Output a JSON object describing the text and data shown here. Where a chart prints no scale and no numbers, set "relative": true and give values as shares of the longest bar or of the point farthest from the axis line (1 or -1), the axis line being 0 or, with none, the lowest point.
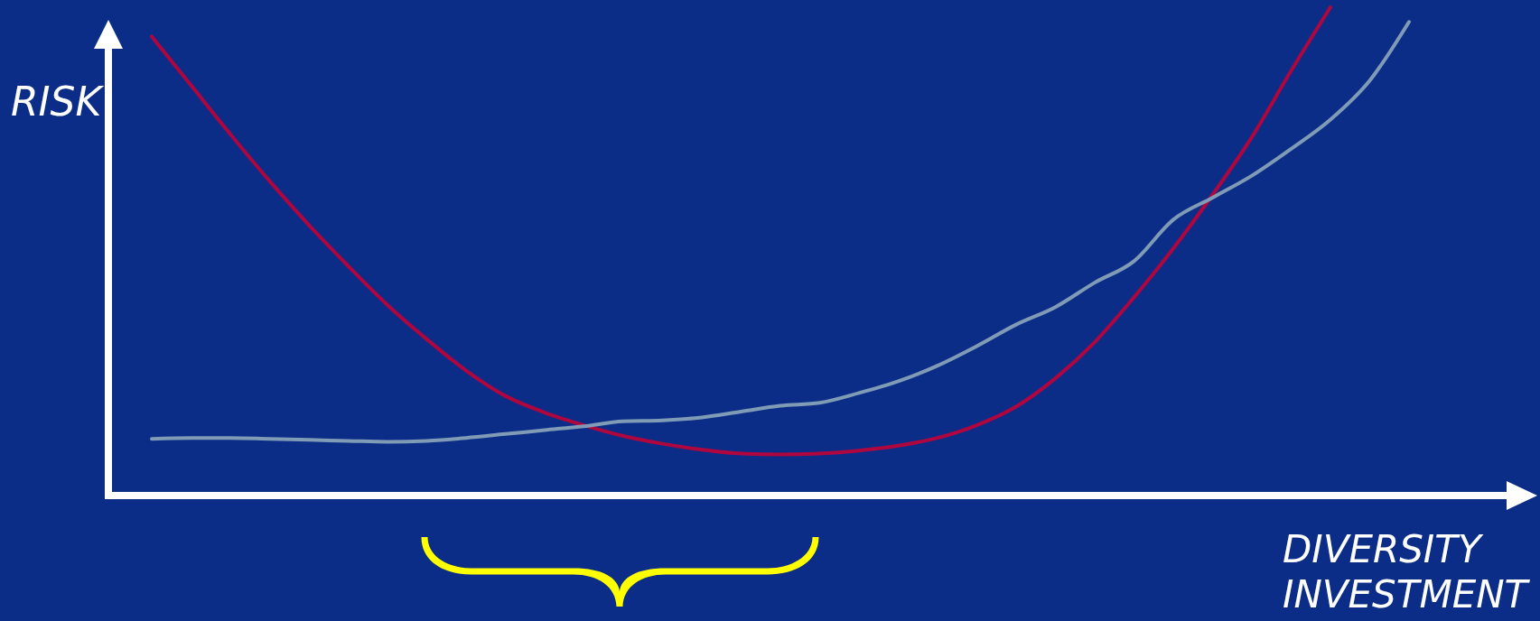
{
  "chart_data": {
    "type": "line",
    "xlabel": "DIVERSITY INVESTMENT",
    "ylabel": "RISK",
    "relative": true,
    "categories": [
      null,
      null,
      null,
      null,
      null,
      null,
      null,
      null,
      null,
      null,
      null,
      null,
      null,
      null,
      null,
      null,
      null,
      null,
      null,
      null,
      null,
      null,
      null,
      null,
      null,
      null,
      null,
      null,
      null,
      null,
      null,
      null,
      null
    ],
    "series": [
      {
        "color": "#b0063f",
        "values": [
          0.94,
          0.84,
          0.74,
          0.644,
          0.554,
          0.47,
          0.39,
          0.32,
          0.256,
          0.204,
          0.17,
          0.144,
          0.122,
          0.106,
          0.094,
          0.086,
          0.084,
          0.086,
          0.092,
          0.102,
          0.118,
          0.144,
          0.182,
          0.24,
          0.314,
          0.406,
          0.506,
          0.616,
          0.734,
          0.87,
          1.0,
          null,
          null
        ]
      },
      {
        "color": "#7f9bb5",
        "values": [
          0.116,
          0.118,
          0.118,
          0.116,
          0.114,
          0.112,
          0.11,
          0.112,
          0.118,
          0.126,
          0.134,
          0.142,
          0.152,
          0.154,
          0.16,
          0.172,
          0.184,
          0.19,
          0.21,
          0.234,
          0.266,
          0.306,
          0.35,
          0.386,
          0.436,
          0.48,
          0.565,
          0.61,
          0.655,
          0.71,
          0.77,
          0.85,
          0.97
        ]
      }
    ]
  }
}
